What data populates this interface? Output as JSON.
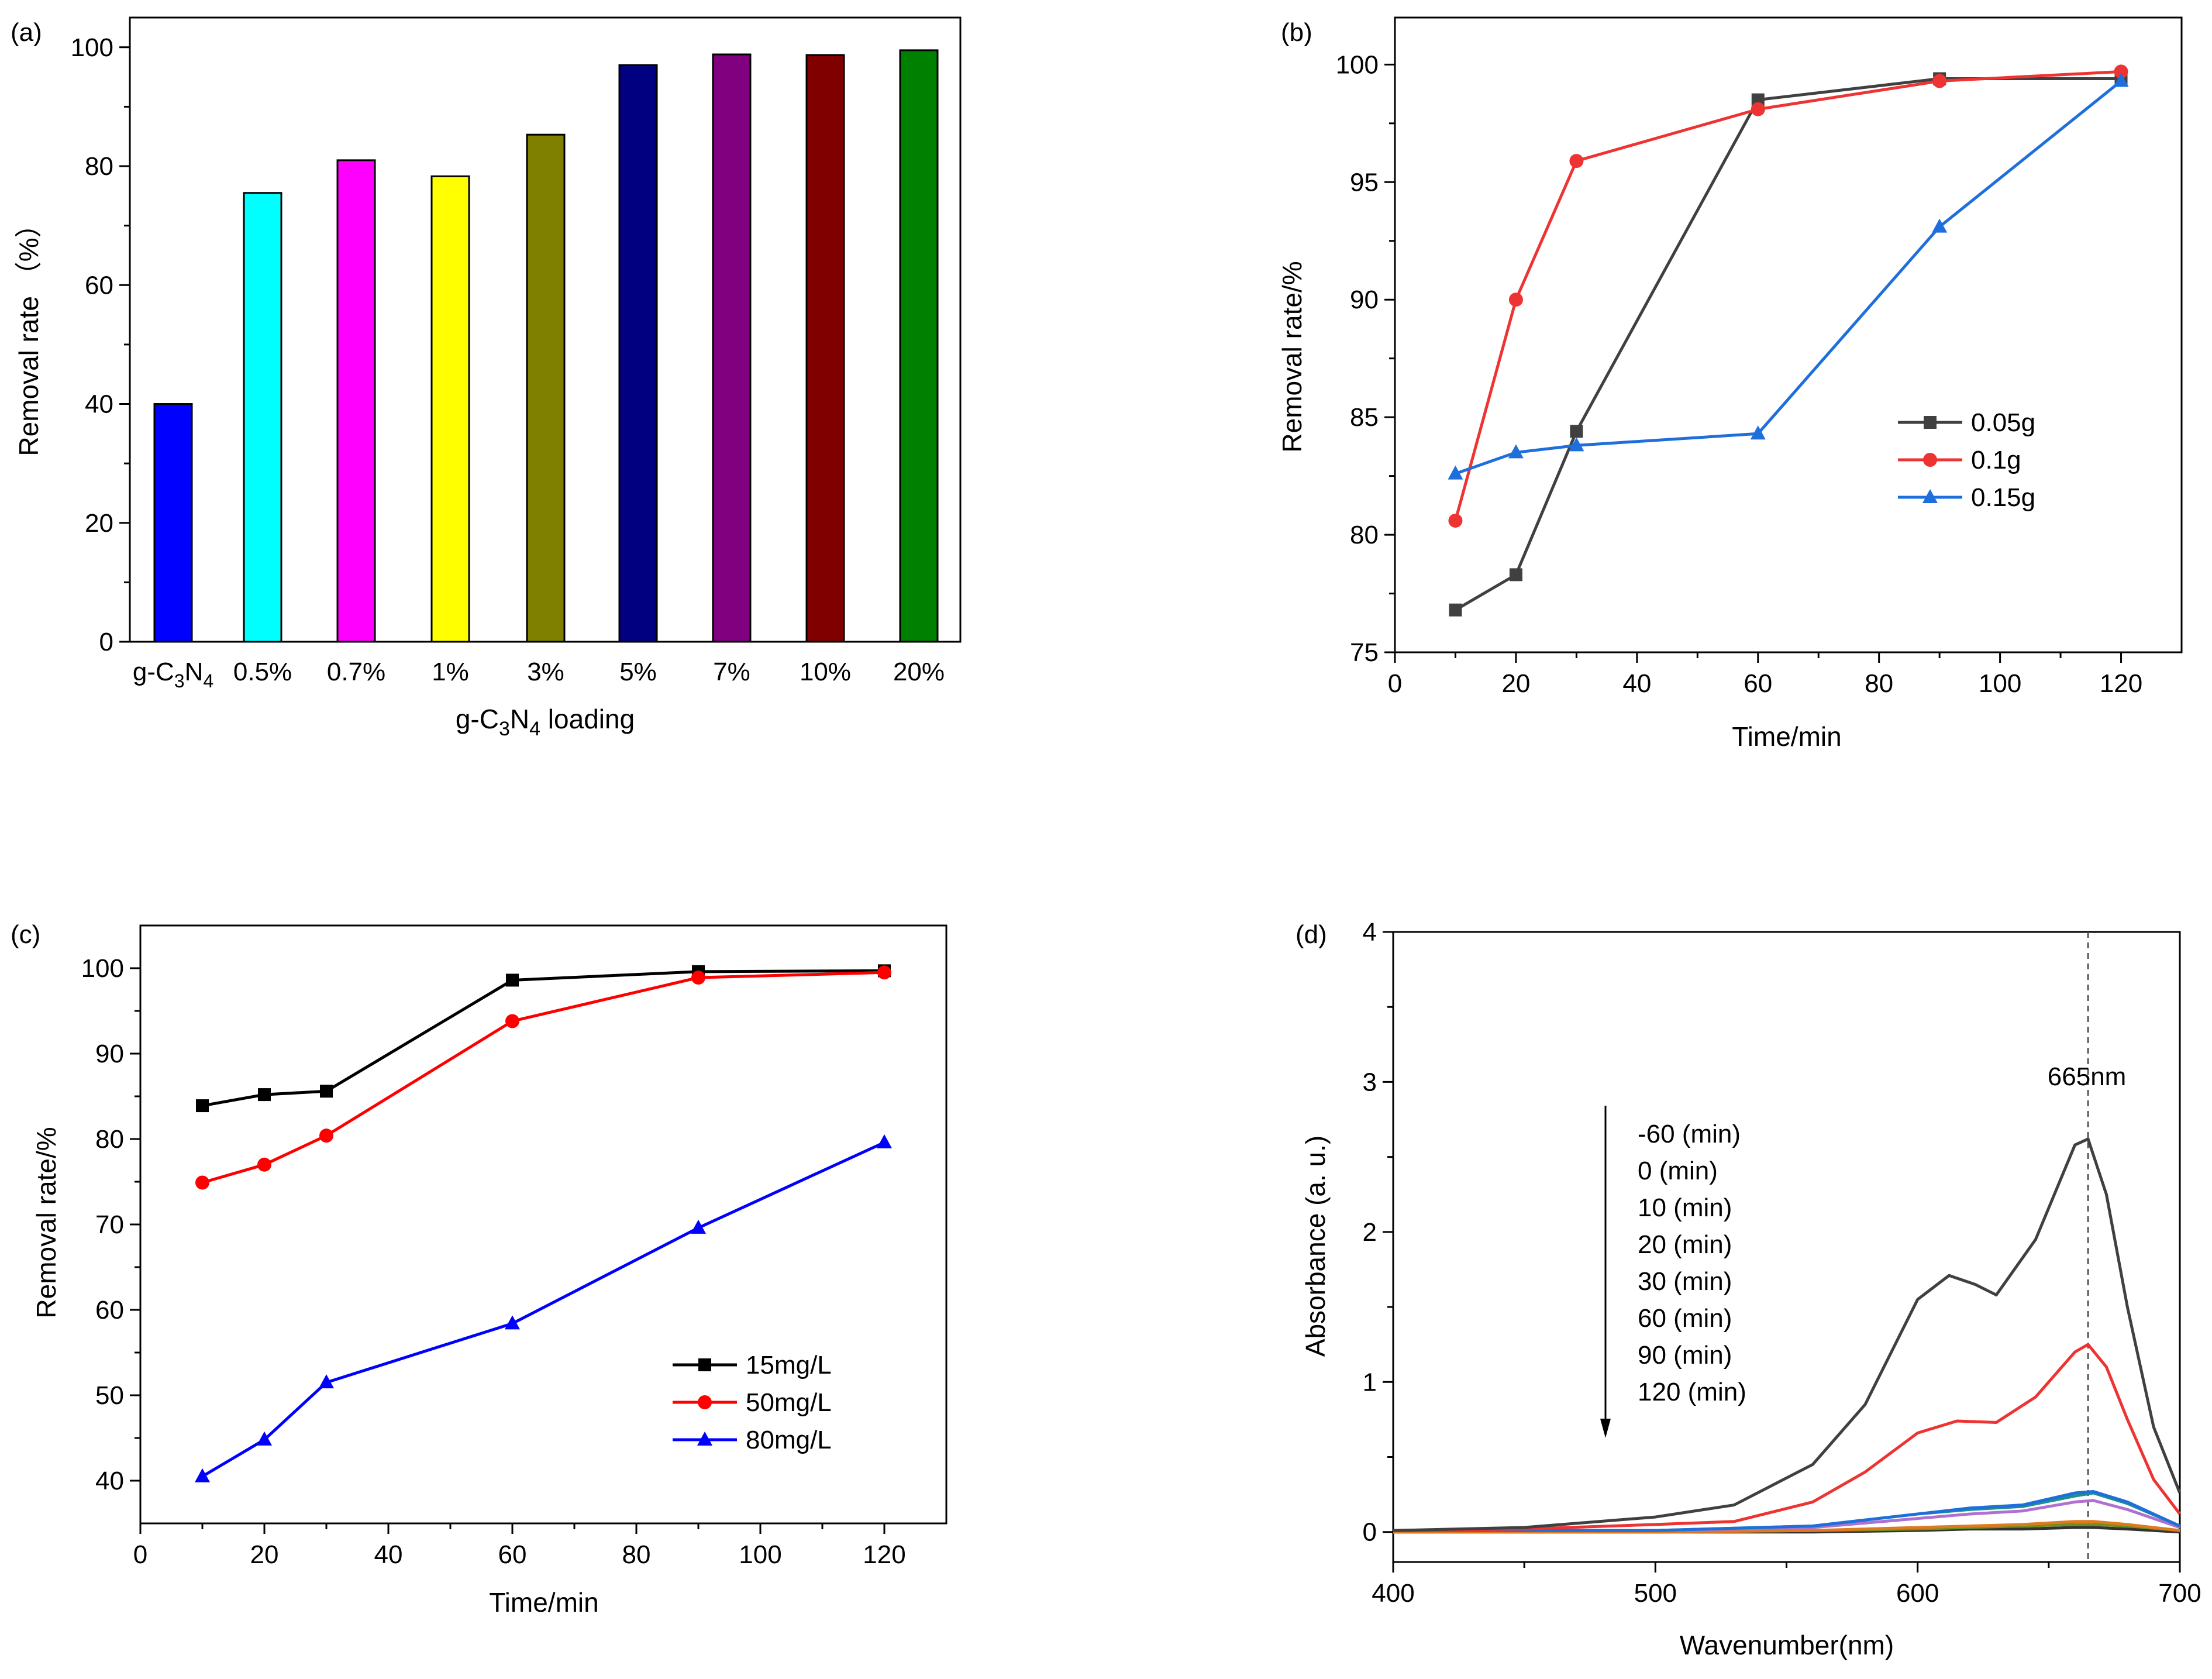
{
  "chart_data": [
    {
      "panel": "(a)",
      "type": "bar",
      "title": "",
      "xlabel": "g-C3N4 loading",
      "xlabel_parts": {
        "a": "g-C",
        "s1": "3",
        "b": "N",
        "s2": "4",
        "c": " loading"
      },
      "ylabel": "Removal rate （%）",
      "ylim": [
        0,
        105
      ],
      "yticks": [
        0,
        20,
        40,
        60,
        80,
        100
      ],
      "categories": [
        "g-C3N4",
        "0.5%",
        "0.7%",
        "1%",
        "3%",
        "5%",
        "7%",
        "10%",
        "20%"
      ],
      "first_category_parts": {
        "a": "g-C",
        "s1": "3",
        "b": "N",
        "s2": "4"
      },
      "values": [
        40,
        75.5,
        81,
        78.3,
        85.3,
        97,
        98.8,
        98.7,
        99.5
      ],
      "colors": [
        "#0000ff",
        "#00ffff",
        "#ff00ff",
        "#ffff00",
        "#808000",
        "#000080",
        "#800080",
        "#800000",
        "#008000"
      ]
    },
    {
      "panel": "(b)",
      "type": "line",
      "xlabel": "Time/min",
      "ylabel": "Removal rate/%",
      "xlim": [
        0,
        130
      ],
      "ylim": [
        75,
        102
      ],
      "xticks": [
        0,
        20,
        40,
        60,
        80,
        100,
        120
      ],
      "yticks": [
        75,
        80,
        85,
        90,
        95,
        100
      ],
      "legend_position": "middle-right",
      "series": [
        {
          "name": "0.05g",
          "color": "#404040",
          "marker": "square",
          "x": [
            10,
            20,
            30,
            60,
            90,
            120
          ],
          "y": [
            76.8,
            78.3,
            84.4,
            98.5,
            99.4,
            99.4
          ]
        },
        {
          "name": "0.1g",
          "color": "#ee3333",
          "marker": "circle",
          "x": [
            10,
            20,
            30,
            60,
            90,
            120
          ],
          "y": [
            80.6,
            90,
            95.9,
            98.1,
            99.3,
            99.7
          ]
        },
        {
          "name": "0.15g",
          "color": "#1e6fdc",
          "marker": "triangle",
          "x": [
            10,
            20,
            30,
            60,
            90,
            120
          ],
          "y": [
            82.6,
            83.5,
            83.8,
            84.3,
            93.1,
            99.3
          ]
        }
      ]
    },
    {
      "panel": "(c)",
      "type": "line",
      "xlabel": "Time/min",
      "ylabel": "Removal rate/%",
      "xlim": [
        0,
        130
      ],
      "ylim": [
        35,
        105
      ],
      "xticks": [
        0,
        20,
        40,
        60,
        80,
        100,
        120
      ],
      "yticks": [
        40,
        50,
        60,
        70,
        80,
        90,
        100
      ],
      "legend_position": "lower-right",
      "series": [
        {
          "name": "15mg/L",
          "color": "#000000",
          "marker": "square",
          "x": [
            10,
            20,
            30,
            60,
            90,
            120
          ],
          "y": [
            83.9,
            85.2,
            85.6,
            98.6,
            99.6,
            99.7
          ]
        },
        {
          "name": "50mg/L",
          "color": "#ff0000",
          "marker": "circle",
          "x": [
            10,
            20,
            30,
            60,
            90,
            120
          ],
          "y": [
            74.9,
            77,
            80.4,
            93.8,
            98.9,
            99.5
          ]
        },
        {
          "name": "80mg/L",
          "color": "#0000ff",
          "marker": "triangle",
          "x": [
            10,
            20,
            30,
            60,
            90,
            120
          ],
          "y": [
            40.5,
            44.8,
            51.5,
            58.4,
            69.6,
            79.6
          ]
        }
      ]
    },
    {
      "panel": "(d)",
      "type": "line",
      "xlabel": "Wavenumber(nm)",
      "ylabel": "Absorbance (a. u.)",
      "xlim": [
        400,
        700
      ],
      "ylim": [
        -0.2,
        4
      ],
      "xticks": [
        400,
        500,
        600,
        700
      ],
      "yticks": [
        0,
        1,
        2,
        3,
        4
      ],
      "reference_line": {
        "x": 665,
        "label": "665nm"
      },
      "legend_entries": [
        "-60  (min)",
        "0     (min)",
        "10   (min)",
        "20   (min)",
        "30   (min)",
        "60   (min)",
        "90   (min)",
        "120 (min)"
      ],
      "legend_arrow": "down",
      "series": [
        {
          "name": "-60 (min)",
          "color": "#404040",
          "x": [
            400,
            450,
            500,
            530,
            560,
            580,
            600,
            612,
            622,
            630,
            645,
            660,
            665,
            672,
            680,
            690,
            700
          ],
          "y": [
            0.01,
            0.03,
            0.1,
            0.18,
            0.45,
            0.85,
            1.55,
            1.71,
            1.65,
            1.58,
            1.95,
            2.58,
            2.62,
            2.25,
            1.5,
            0.7,
            0.26
          ]
        },
        {
          "name": "0 (min)",
          "color": "#ee3333",
          "x": [
            400,
            450,
            500,
            530,
            560,
            580,
            600,
            615,
            630,
            645,
            660,
            665,
            672,
            680,
            690,
            700
          ],
          "y": [
            0.01,
            0.02,
            0.05,
            0.07,
            0.2,
            0.4,
            0.66,
            0.74,
            0.73,
            0.9,
            1.2,
            1.25,
            1.1,
            0.75,
            0.35,
            0.12
          ]
        },
        {
          "name": "10 (min)",
          "color": "#1e6fdc",
          "x": [
            400,
            500,
            560,
            600,
            620,
            640,
            660,
            667,
            680,
            700
          ],
          "y": [
            0.01,
            0.01,
            0.04,
            0.12,
            0.16,
            0.18,
            0.26,
            0.27,
            0.2,
            0.04
          ]
        },
        {
          "name": "20 (min)",
          "color": "#1a9090",
          "x": [
            400,
            500,
            560,
            600,
            620,
            640,
            660,
            667,
            680,
            700
          ],
          "y": [
            0.01,
            0.01,
            0.04,
            0.12,
            0.15,
            0.17,
            0.24,
            0.26,
            0.19,
            0.04
          ]
        },
        {
          "name": "30 (min)",
          "color": "#b070d0",
          "x": [
            400,
            500,
            560,
            600,
            620,
            640,
            660,
            667,
            680,
            700
          ],
          "y": [
            0.01,
            0.01,
            0.03,
            0.09,
            0.12,
            0.14,
            0.2,
            0.21,
            0.15,
            0.03
          ]
        },
        {
          "name": "60 (min)",
          "color": "#e07a1f",
          "x": [
            400,
            500,
            560,
            600,
            620,
            640,
            660,
            667,
            680,
            700
          ],
          "y": [
            0,
            0,
            0.01,
            0.03,
            0.04,
            0.05,
            0.07,
            0.07,
            0.05,
            0.01
          ]
        },
        {
          "name": "90 (min)",
          "color": "#6f8f1f",
          "x": [
            400,
            500,
            560,
            600,
            620,
            640,
            660,
            667,
            680,
            700
          ],
          "y": [
            0,
            0,
            0.01,
            0.02,
            0.03,
            0.04,
            0.05,
            0.05,
            0.04,
            0.01
          ]
        },
        {
          "name": "120 (min)",
          "color": "#333333",
          "x": [
            400,
            500,
            560,
            600,
            620,
            640,
            660,
            667,
            680,
            700
          ],
          "y": [
            0,
            0,
            0,
            0.01,
            0.02,
            0.02,
            0.03,
            0.03,
            0.02,
            0
          ]
        }
      ]
    }
  ]
}
